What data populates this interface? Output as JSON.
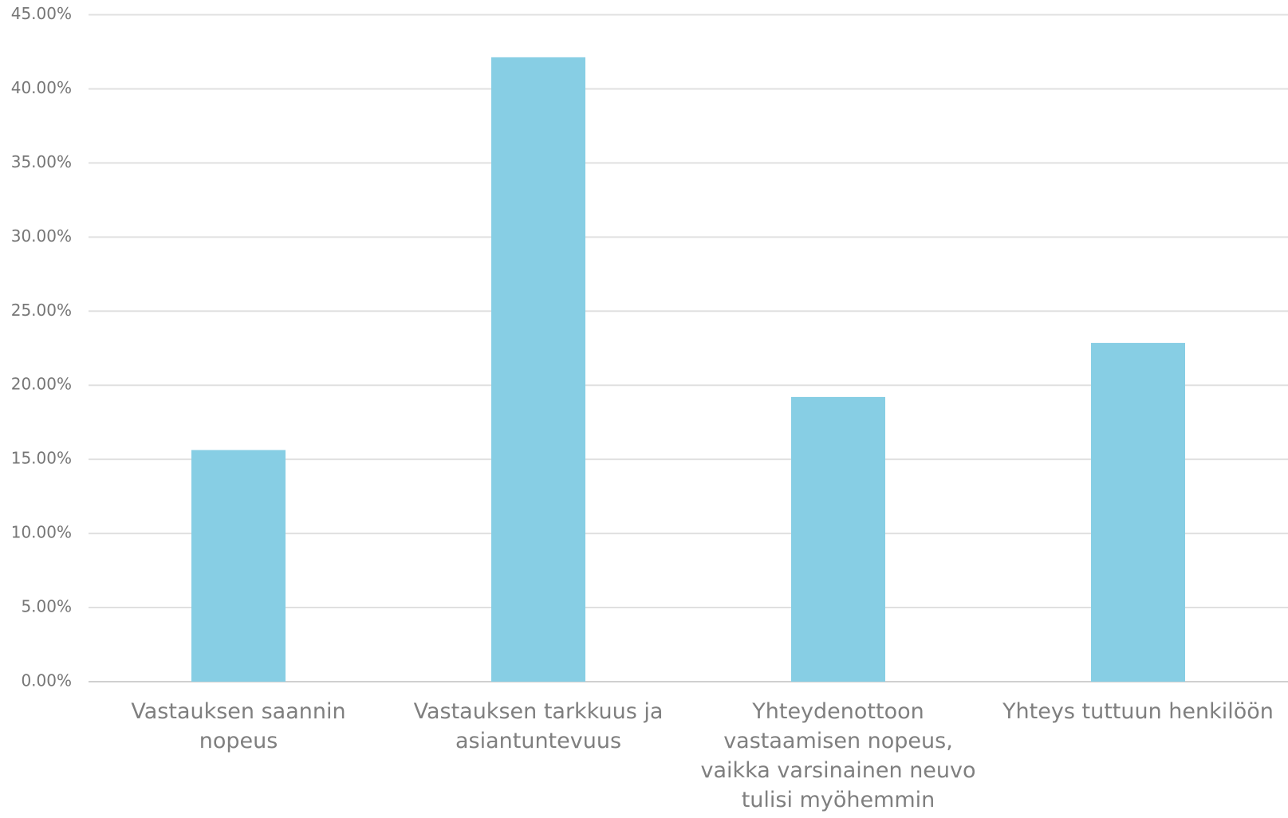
{
  "chart_data": {
    "type": "bar",
    "categories": [
      "Vastauksen saannin nopeus",
      "Vastauksen tarkkuus ja asiantuntevuus",
      "Yhteydenottoon vastaamisen nopeus, vaikka varsinainen neuvo tulisi myöhemmin",
      "Yhteys tuttuun henkilöön"
    ],
    "values": [
      15.63,
      42.13,
      19.21,
      22.86
    ],
    "color": "#87cee4",
    "ylim": [
      0,
      45
    ],
    "yticks": [
      {
        "value": 0,
        "label": "0.00%"
      },
      {
        "value": 5,
        "label": "5.00%"
      },
      {
        "value": 10,
        "label": "10.00%"
      },
      {
        "value": 15,
        "label": "15.00%"
      },
      {
        "value": 20,
        "label": "20.00%"
      },
      {
        "value": 25,
        "label": "25.00%"
      },
      {
        "value": 30,
        "label": "30.00%"
      },
      {
        "value": 35,
        "label": "35.00%"
      },
      {
        "value": 40,
        "label": "40.00%"
      },
      {
        "value": 45,
        "label": "45.00%"
      }
    ],
    "grid": true
  }
}
